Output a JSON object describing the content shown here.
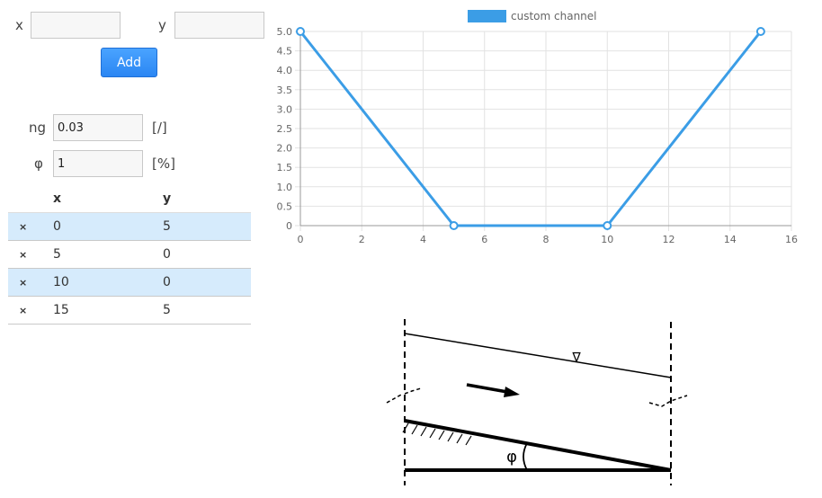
{
  "form": {
    "x_label": "x",
    "y_label": "y",
    "x_value": "",
    "y_value": "",
    "add_label": "Add",
    "ng_label": "ng",
    "ng_value": "0.03",
    "ng_unit": "[/]",
    "phi_label": "φ",
    "phi_value": "1",
    "phi_unit": "[%]"
  },
  "table": {
    "headers": [
      "x",
      "y"
    ],
    "delete_icon": "×",
    "rows": [
      {
        "x": "0",
        "y": "5"
      },
      {
        "x": "5",
        "y": "0"
      },
      {
        "x": "10",
        "y": "0"
      },
      {
        "x": "15",
        "y": "5"
      }
    ]
  },
  "chart_data": {
    "type": "line",
    "legend": "custom channel",
    "legend_position": "top",
    "color": "#3b9de6",
    "series": [
      {
        "name": "custom channel",
        "x": [
          0,
          5,
          10,
          15
        ],
        "y": [
          5,
          0,
          0,
          5
        ]
      }
    ],
    "xlim": [
      0,
      16
    ],
    "ylim": [
      0,
      5
    ],
    "x_ticks": [
      "0",
      "2",
      "4",
      "6",
      "8",
      "10",
      "12",
      "14",
      "16"
    ],
    "y_ticks": [
      "0",
      "0.5",
      "1.0",
      "1.5",
      "2.0",
      "2.5",
      "3.0",
      "3.5",
      "4.0",
      "4.5",
      "5.0"
    ],
    "grid": true
  },
  "diagram": {
    "angle_label": "φ",
    "water_symbol": "∇"
  }
}
